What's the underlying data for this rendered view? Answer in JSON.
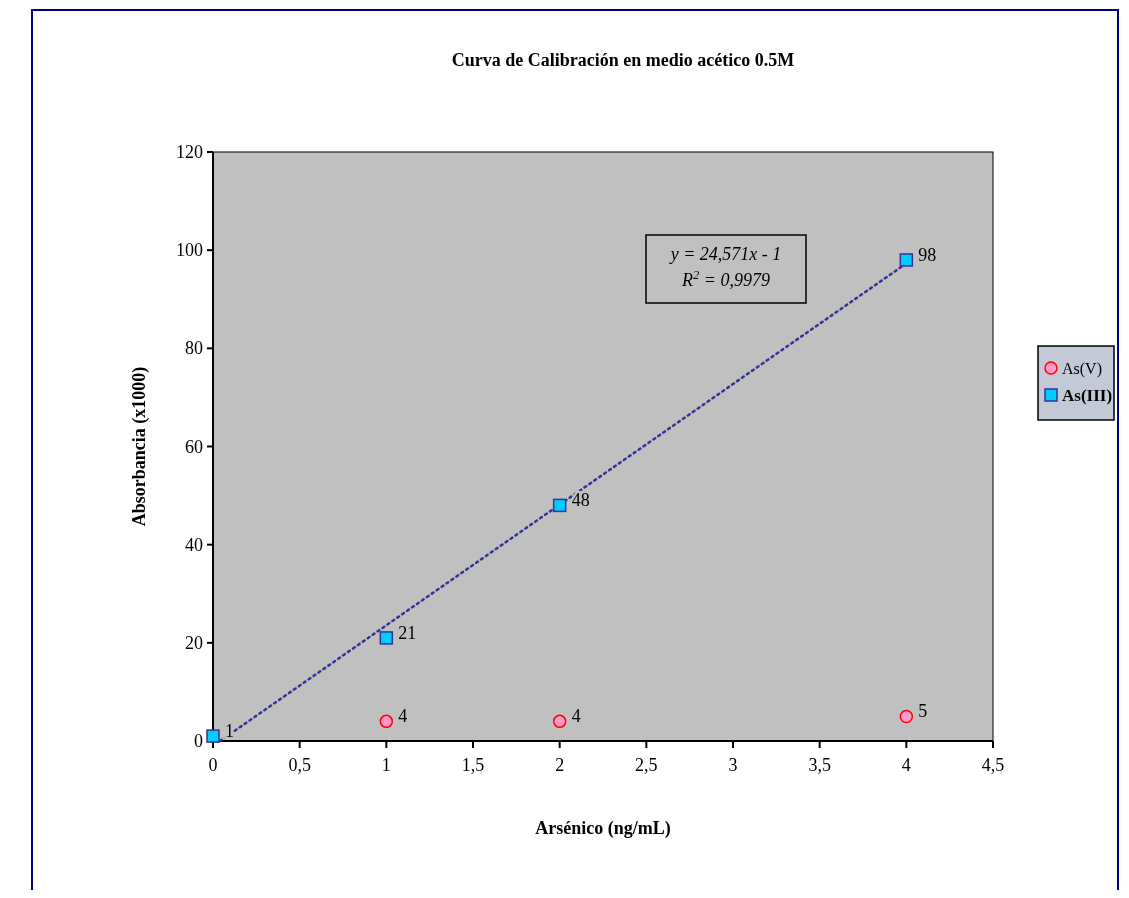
{
  "chart_data": {
    "type": "scatter",
    "title": "Curva de Calibración en medio acético 0.5M",
    "xlabel": "Arsénico (ng/mL)",
    "ylabel": "Absorbancia (x1000)",
    "series": [
      {
        "name": "As(V)",
        "marker": "circle",
        "color": "#ff99cc",
        "x": [
          1,
          2,
          4
        ],
        "values": [
          4,
          4,
          5
        ],
        "value_labels": [
          "4",
          "4",
          "5"
        ]
      },
      {
        "name": "As(III)",
        "marker": "square",
        "color": "#00ccff",
        "x": [
          0,
          1,
          2,
          4
        ],
        "values": [
          1,
          21,
          48,
          98
        ],
        "value_labels": [
          "1",
          "21",
          "48",
          "98"
        ]
      },
      {
        "type": "line",
        "marker": "none",
        "line_style": "dotted",
        "color": "#333399",
        "x": [
          0.0407,
          4
        ],
        "values": [
          0,
          97.3
        ]
      }
    ],
    "annotations": [
      "y = 24,571x - 1",
      "R$^{2}$ = 0,9979"
    ],
    "xlim": [
      0,
      4.5
    ],
    "xticks": [
      0,
      {
        "value": 0.5,
        "label": "0,5"
      },
      1,
      {
        "value": 1.5,
        "label": "1,5"
      },
      2,
      {
        "value": 2.5,
        "label": "2,5"
      },
      3,
      {
        "value": 3.5,
        "label": "3,5"
      },
      4,
      {
        "value": 4.5,
        "label": "4,5"
      }
    ],
    "ylim": [
      0,
      120
    ],
    "yticks": [
      0,
      20,
      40,
      60,
      80,
      100,
      120
    ],
    "legend": "right",
    "grid": false
  }
}
